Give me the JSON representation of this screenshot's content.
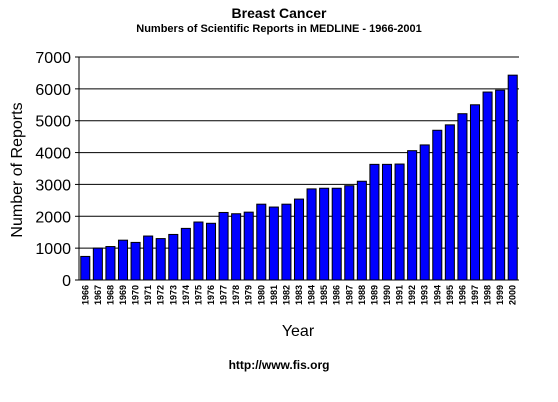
{
  "title": "Breast Cancer",
  "subtitle": "Numbers of Scientific Reports in MEDLINE - 1966-2001",
  "footer": "http://www.fis.org",
  "chart_data": {
    "type": "bar",
    "title": "Breast Cancer",
    "subtitle": "Numbers of Scientific Reports in MEDLINE - 1966-2001",
    "xlabel": "Year",
    "ylabel": "Number of Reports",
    "ylim": [
      0,
      7000
    ],
    "yticks": [
      0,
      1000,
      2000,
      3000,
      4000,
      5000,
      6000,
      7000
    ],
    "grid": true,
    "bar_color": "#0000ff",
    "categories": [
      "1966",
      "1967",
      "1968",
      "1969",
      "1970",
      "1971",
      "1972",
      "1973",
      "1974",
      "1975",
      "1976",
      "1977",
      "1978",
      "1979",
      "1980",
      "1981",
      "1982",
      "1983",
      "1984",
      "1985",
      "1986",
      "1987",
      "1988",
      "1989",
      "1990",
      "1991",
      "1992",
      "1993",
      "1994",
      "1995",
      "1996",
      "1997",
      "1998",
      "1999",
      "2000"
    ],
    "values": [
      740,
      1000,
      1050,
      1250,
      1180,
      1380,
      1300,
      1430,
      1620,
      1820,
      1780,
      2120,
      2080,
      2130,
      2380,
      2290,
      2380,
      2540,
      2860,
      2880,
      2880,
      2960,
      3100,
      3630,
      3630,
      3640,
      4060,
      4240,
      4700,
      4870,
      5220,
      5500,
      5900,
      5960,
      6430
    ]
  }
}
